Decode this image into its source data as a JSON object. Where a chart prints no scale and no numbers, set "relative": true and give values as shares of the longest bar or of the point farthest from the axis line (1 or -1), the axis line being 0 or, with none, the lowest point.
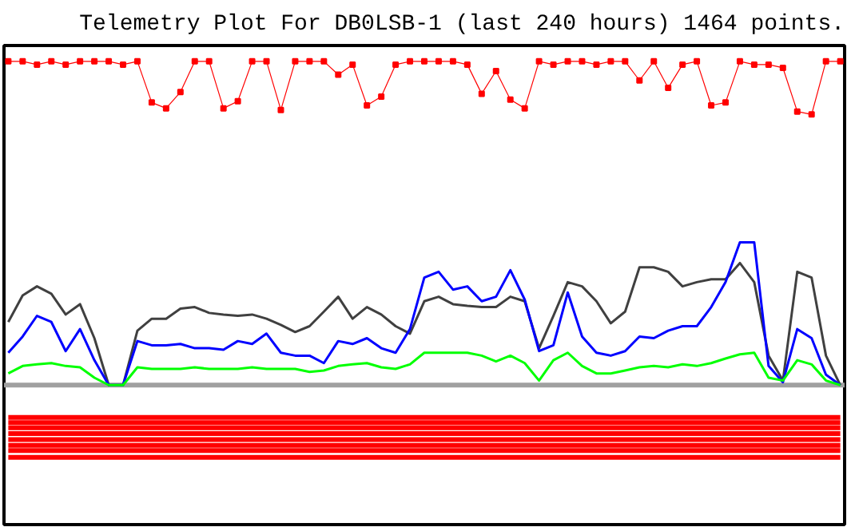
{
  "chart_data": {
    "type": "line",
    "title": "Telemetry Plot For DB0LSB-1 (last 240 hours) 1464 points.",
    "relative": true,
    "categories": [
      null,
      null,
      null,
      null,
      null,
      null,
      null,
      null,
      null,
      null,
      null,
      null,
      null,
      null,
      null,
      null,
      null,
      null,
      null,
      null,
      null,
      null,
      null,
      null,
      null,
      null,
      null,
      null,
      null,
      null,
      null,
      null,
      null,
      null,
      null,
      null,
      null,
      null,
      null,
      null,
      null,
      null,
      null,
      null,
      null,
      null,
      null,
      null,
      null,
      null,
      null,
      null,
      null,
      null,
      null,
      null,
      null,
      null,
      null
    ],
    "series": [
      {
        "marker": "square",
        "color": "#ff0000",
        "values": [
          1.0,
          1.0,
          0.99,
          1.0,
          0.99,
          1.0,
          1.0,
          1.0,
          0.99,
          1.0,
          0.873,
          0.855,
          0.905,
          1.0,
          1.0,
          0.855,
          0.877,
          1.0,
          1.0,
          0.85,
          1.0,
          1.0,
          1.0,
          0.959,
          0.99,
          0.864,
          0.891,
          0.99,
          1.0,
          1.0,
          1.0,
          1.0,
          0.99,
          0.9,
          0.97,
          0.882,
          0.855,
          1.0,
          0.99,
          1.0,
          1.0,
          0.99,
          1.0,
          1.0,
          0.941,
          1.0,
          0.918,
          0.99,
          1.0,
          0.864,
          0.873,
          1.0,
          0.99,
          0.99,
          0.98,
          0.845,
          0.836,
          1.0,
          1.0
        ]
      },
      {
        "color": "#404040",
        "values": [
          0.195,
          0.277,
          0.305,
          0.282,
          0.218,
          0.25,
          0.145,
          0,
          0,
          0.168,
          0.205,
          0.205,
          0.236,
          0.241,
          0.223,
          0.218,
          0.214,
          0.218,
          0.205,
          0.186,
          0.164,
          0.182,
          0.227,
          0.273,
          0.205,
          0.241,
          0.218,
          0.182,
          0.159,
          0.259,
          0.273,
          0.25,
          0.245,
          0.241,
          0.241,
          0.273,
          0.259,
          0.114,
          0.214,
          0.318,
          0.305,
          0.259,
          0.191,
          0.227,
          0.364,
          0.364,
          0.35,
          0.305,
          0.318,
          0.327,
          0.327,
          0.377,
          0.318,
          0.091,
          0.014,
          0.35,
          0.332,
          0.091,
          0
        ]
      },
      {
        "color": "#0000ff",
        "values": [
          0.1,
          0.15,
          0.214,
          0.195,
          0.105,
          0.173,
          0.077,
          0,
          0,
          0.136,
          0.123,
          0.123,
          0.127,
          0.114,
          0.114,
          0.109,
          0.136,
          0.127,
          0.159,
          0.1,
          0.091,
          0.091,
          0.068,
          0.136,
          0.127,
          0.145,
          0.114,
          0.1,
          0.173,
          0.332,
          0.35,
          0.295,
          0.305,
          0.259,
          0.273,
          0.355,
          0.264,
          0.105,
          0.123,
          0.286,
          0.15,
          0.1,
          0.091,
          0.105,
          0.15,
          0.145,
          0.168,
          0.182,
          0.182,
          0.241,
          0.318,
          0.441,
          0.441,
          0.059,
          0.009,
          0.173,
          0.145,
          0.032,
          0
        ]
      },
      {
        "color": "#00ff00",
        "values": [
          0.036,
          0.059,
          0.064,
          0.068,
          0.059,
          0.055,
          0.023,
          0,
          0,
          0.055,
          0.05,
          0.05,
          0.05,
          0.055,
          0.05,
          0.05,
          0.05,
          0.055,
          0.05,
          0.05,
          0.05,
          0.041,
          0.045,
          0.059,
          0.064,
          0.068,
          0.055,
          0.05,
          0.064,
          0.1,
          0.1,
          0.1,
          0.1,
          0.091,
          0.073,
          0.091,
          0.068,
          0.014,
          0.077,
          0.1,
          0.059,
          0.036,
          0.036,
          0.045,
          0.055,
          0.059,
          0.055,
          0.064,
          0.059,
          0.068,
          0.082,
          0.095,
          0.1,
          0.023,
          0.014,
          0.077,
          0.064,
          0.014,
          0
        ]
      },
      {
        "color": "#ff0000",
        "values": [
          -0.1,
          -0.1,
          -0.1,
          -0.1,
          -0.1,
          -0.1,
          -0.1,
          -0.1,
          -0.1,
          -0.1,
          -0.1,
          -0.1,
          -0.1,
          -0.1,
          -0.1,
          -0.1,
          -0.1,
          -0.1,
          -0.1,
          -0.1,
          -0.1,
          -0.1,
          -0.1,
          -0.1,
          -0.1,
          -0.1,
          -0.1,
          -0.1,
          -0.1,
          -0.1,
          -0.1,
          -0.1,
          -0.1,
          -0.1,
          -0.1,
          -0.1,
          -0.1,
          -0.1,
          -0.1,
          -0.1,
          -0.1,
          -0.1,
          -0.1,
          -0.1,
          -0.1,
          -0.1,
          -0.1,
          -0.1,
          -0.1,
          -0.1,
          -0.1,
          -0.1,
          -0.1,
          -0.1,
          -0.1,
          -0.1,
          -0.1,
          -0.1,
          -0.1
        ]
      },
      {
        "color": "#ff0000",
        "values": [
          -0.116,
          -0.116,
          -0.116,
          -0.116,
          -0.116,
          -0.116,
          -0.116,
          -0.116,
          -0.116,
          -0.116,
          -0.116,
          -0.116,
          -0.116,
          -0.116,
          -0.116,
          -0.116,
          -0.116,
          -0.116,
          -0.116,
          -0.116,
          -0.116,
          -0.116,
          -0.116,
          -0.116,
          -0.116,
          -0.116,
          -0.116,
          -0.116,
          -0.116,
          -0.116,
          -0.116,
          -0.116,
          -0.116,
          -0.116,
          -0.116,
          -0.116,
          -0.116,
          -0.116,
          -0.116,
          -0.116,
          -0.116,
          -0.116,
          -0.116,
          -0.116,
          -0.116,
          -0.116,
          -0.116,
          -0.116,
          -0.116,
          -0.116,
          -0.116,
          -0.116,
          -0.116,
          -0.116,
          -0.116,
          -0.116,
          -0.116,
          -0.116,
          -0.116
        ]
      },
      {
        "color": "#ff0000",
        "values": [
          -0.132,
          -0.132,
          -0.132,
          -0.132,
          -0.132,
          -0.132,
          -0.132,
          -0.132,
          -0.132,
          -0.132,
          -0.132,
          -0.132,
          -0.132,
          -0.132,
          -0.132,
          -0.132,
          -0.132,
          -0.132,
          -0.132,
          -0.132,
          -0.132,
          -0.132,
          -0.132,
          -0.132,
          -0.132,
          -0.132,
          -0.132,
          -0.132,
          -0.132,
          -0.132,
          -0.132,
          -0.132,
          -0.132,
          -0.132,
          -0.132,
          -0.132,
          -0.132,
          -0.132,
          -0.132,
          -0.132,
          -0.132,
          -0.132,
          -0.132,
          -0.132,
          -0.132,
          -0.132,
          -0.132,
          -0.132,
          -0.132,
          -0.132,
          -0.132,
          -0.132,
          -0.132,
          -0.132,
          -0.132,
          -0.132,
          -0.132,
          -0.132,
          -0.132
        ]
      },
      {
        "color": "#ff0000",
        "values": [
          -0.15,
          -0.15,
          -0.15,
          -0.15,
          -0.15,
          -0.15,
          -0.15,
          -0.15,
          -0.15,
          -0.15,
          -0.15,
          -0.15,
          -0.15,
          -0.15,
          -0.15,
          -0.15,
          -0.15,
          -0.15,
          -0.15,
          -0.15,
          -0.15,
          -0.15,
          -0.15,
          -0.15,
          -0.15,
          -0.15,
          -0.15,
          -0.15,
          -0.15,
          -0.15,
          -0.15,
          -0.15,
          -0.15,
          -0.15,
          -0.15,
          -0.15,
          -0.15,
          -0.15,
          -0.15,
          -0.15,
          -0.15,
          -0.15,
          -0.15,
          -0.15,
          -0.15,
          -0.15,
          -0.15,
          -0.15,
          -0.15,
          -0.15,
          -0.15,
          -0.15,
          -0.15,
          -0.15,
          -0.15,
          -0.15,
          -0.15,
          -0.15,
          -0.15
        ]
      },
      {
        "color": "#ff0000",
        "values": [
          -0.168,
          -0.168,
          -0.168,
          -0.168,
          -0.168,
          -0.168,
          -0.168,
          -0.168,
          -0.168,
          -0.168,
          -0.168,
          -0.168,
          -0.168,
          -0.168,
          -0.168,
          -0.168,
          -0.168,
          -0.168,
          -0.168,
          -0.168,
          -0.168,
          -0.168,
          -0.168,
          -0.168,
          -0.168,
          -0.168,
          -0.168,
          -0.168,
          -0.168,
          -0.168,
          -0.168,
          -0.168,
          -0.168,
          -0.168,
          -0.168,
          -0.168,
          -0.168,
          -0.168,
          -0.168,
          -0.168,
          -0.168,
          -0.168,
          -0.168,
          -0.168,
          -0.168,
          -0.168,
          -0.168,
          -0.168,
          -0.168,
          -0.168,
          -0.168,
          -0.168,
          -0.168,
          -0.168,
          -0.168,
          -0.168,
          -0.168,
          -0.168,
          -0.168
        ]
      },
      {
        "color": "#ff0000",
        "values": [
          -0.186,
          -0.186,
          -0.186,
          -0.186,
          -0.186,
          -0.186,
          -0.186,
          -0.186,
          -0.186,
          -0.186,
          -0.186,
          -0.186,
          -0.186,
          -0.186,
          -0.186,
          -0.186,
          -0.186,
          -0.186,
          -0.186,
          -0.186,
          -0.186,
          -0.186,
          -0.186,
          -0.186,
          -0.186,
          -0.186,
          -0.186,
          -0.186,
          -0.186,
          -0.186,
          -0.186,
          -0.186,
          -0.186,
          -0.186,
          -0.186,
          -0.186,
          -0.186,
          -0.186,
          -0.186,
          -0.186,
          -0.186,
          -0.186,
          -0.186,
          -0.186,
          -0.186,
          -0.186,
          -0.186,
          -0.186,
          -0.186,
          -0.186,
          -0.186,
          -0.186,
          -0.186,
          -0.186,
          -0.186,
          -0.186,
          -0.186,
          -0.186,
          -0.186
        ]
      },
      {
        "color": "#ff0000",
        "values": [
          -0.202,
          -0.202,
          -0.202,
          -0.202,
          -0.202,
          -0.202,
          -0.202,
          -0.202,
          -0.202,
          -0.202,
          -0.202,
          -0.202,
          -0.202,
          -0.202,
          -0.202,
          -0.202,
          -0.202,
          -0.202,
          -0.202,
          -0.202,
          -0.202,
          -0.202,
          -0.202,
          -0.202,
          -0.202,
          -0.202,
          -0.202,
          -0.202,
          -0.202,
          -0.202,
          -0.202,
          -0.202,
          -0.202,
          -0.202,
          -0.202,
          -0.202,
          -0.202,
          -0.202,
          -0.202,
          -0.202,
          -0.202,
          -0.202,
          -0.202,
          -0.202,
          -0.202,
          -0.202,
          -0.202,
          -0.202,
          -0.202,
          -0.202,
          -0.202,
          -0.202,
          -0.202,
          -0.202,
          -0.202,
          -0.202,
          -0.202,
          -0.202,
          -0.202
        ]
      },
      {
        "color": "#ff0000",
        "values": [
          -0.223,
          -0.223,
          -0.223,
          -0.223,
          -0.223,
          -0.223,
          -0.223,
          -0.223,
          -0.223,
          -0.223,
          -0.223,
          -0.223,
          -0.223,
          -0.223,
          -0.223,
          -0.223,
          -0.223,
          -0.223,
          -0.223,
          -0.223,
          -0.223,
          -0.223,
          -0.223,
          -0.223,
          -0.223,
          -0.223,
          -0.223,
          -0.223,
          -0.223,
          -0.223,
          -0.223,
          -0.223,
          -0.223,
          -0.223,
          -0.223,
          -0.223,
          -0.223,
          -0.223,
          -0.223,
          -0.223,
          -0.223,
          -0.223,
          -0.223,
          -0.223,
          -0.223,
          -0.223,
          -0.223,
          -0.223,
          -0.223,
          -0.223,
          -0.223,
          -0.223,
          -0.223,
          -0.223,
          -0.223,
          -0.223,
          -0.223,
          -0.223,
          -0.223
        ]
      }
    ]
  }
}
